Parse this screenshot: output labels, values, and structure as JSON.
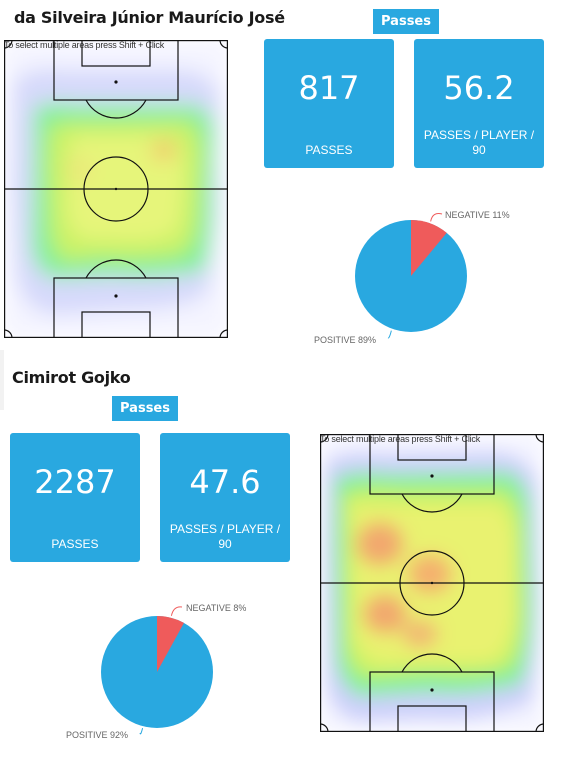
{
  "players": [
    {
      "name": "da Silveira Júnior Maurício José",
      "section_label": "Passes",
      "pitch_hint": "To select multiple areas press Shift + Click",
      "stats": [
        {
          "value": "817",
          "label": "PASSES"
        },
        {
          "value": "56.2",
          "label": "PASSES / PLAYER / 90"
        }
      ],
      "pie": {
        "negative_label": "NEGATIVE 11%",
        "positive_label": "POSITIVE 89%",
        "negative_pct": 11,
        "positive_pct": 89
      }
    },
    {
      "name": "Cimirot Gojko",
      "section_label": "Passes",
      "pitch_hint": "To select multiple areas press Shift + Click",
      "stats": [
        {
          "value": "2287",
          "label": "PASSES"
        },
        {
          "value": "47.6",
          "label": "PASSES / PLAYER / 90"
        }
      ],
      "pie": {
        "negative_label": "NEGATIVE 8%",
        "positive_label": "POSITIVE 92%",
        "negative_pct": 8,
        "positive_pct": 92
      }
    }
  ],
  "colors": {
    "accent": "#29a8e0",
    "positive": "#29a8e0",
    "negative": "#ef5b5b"
  }
}
